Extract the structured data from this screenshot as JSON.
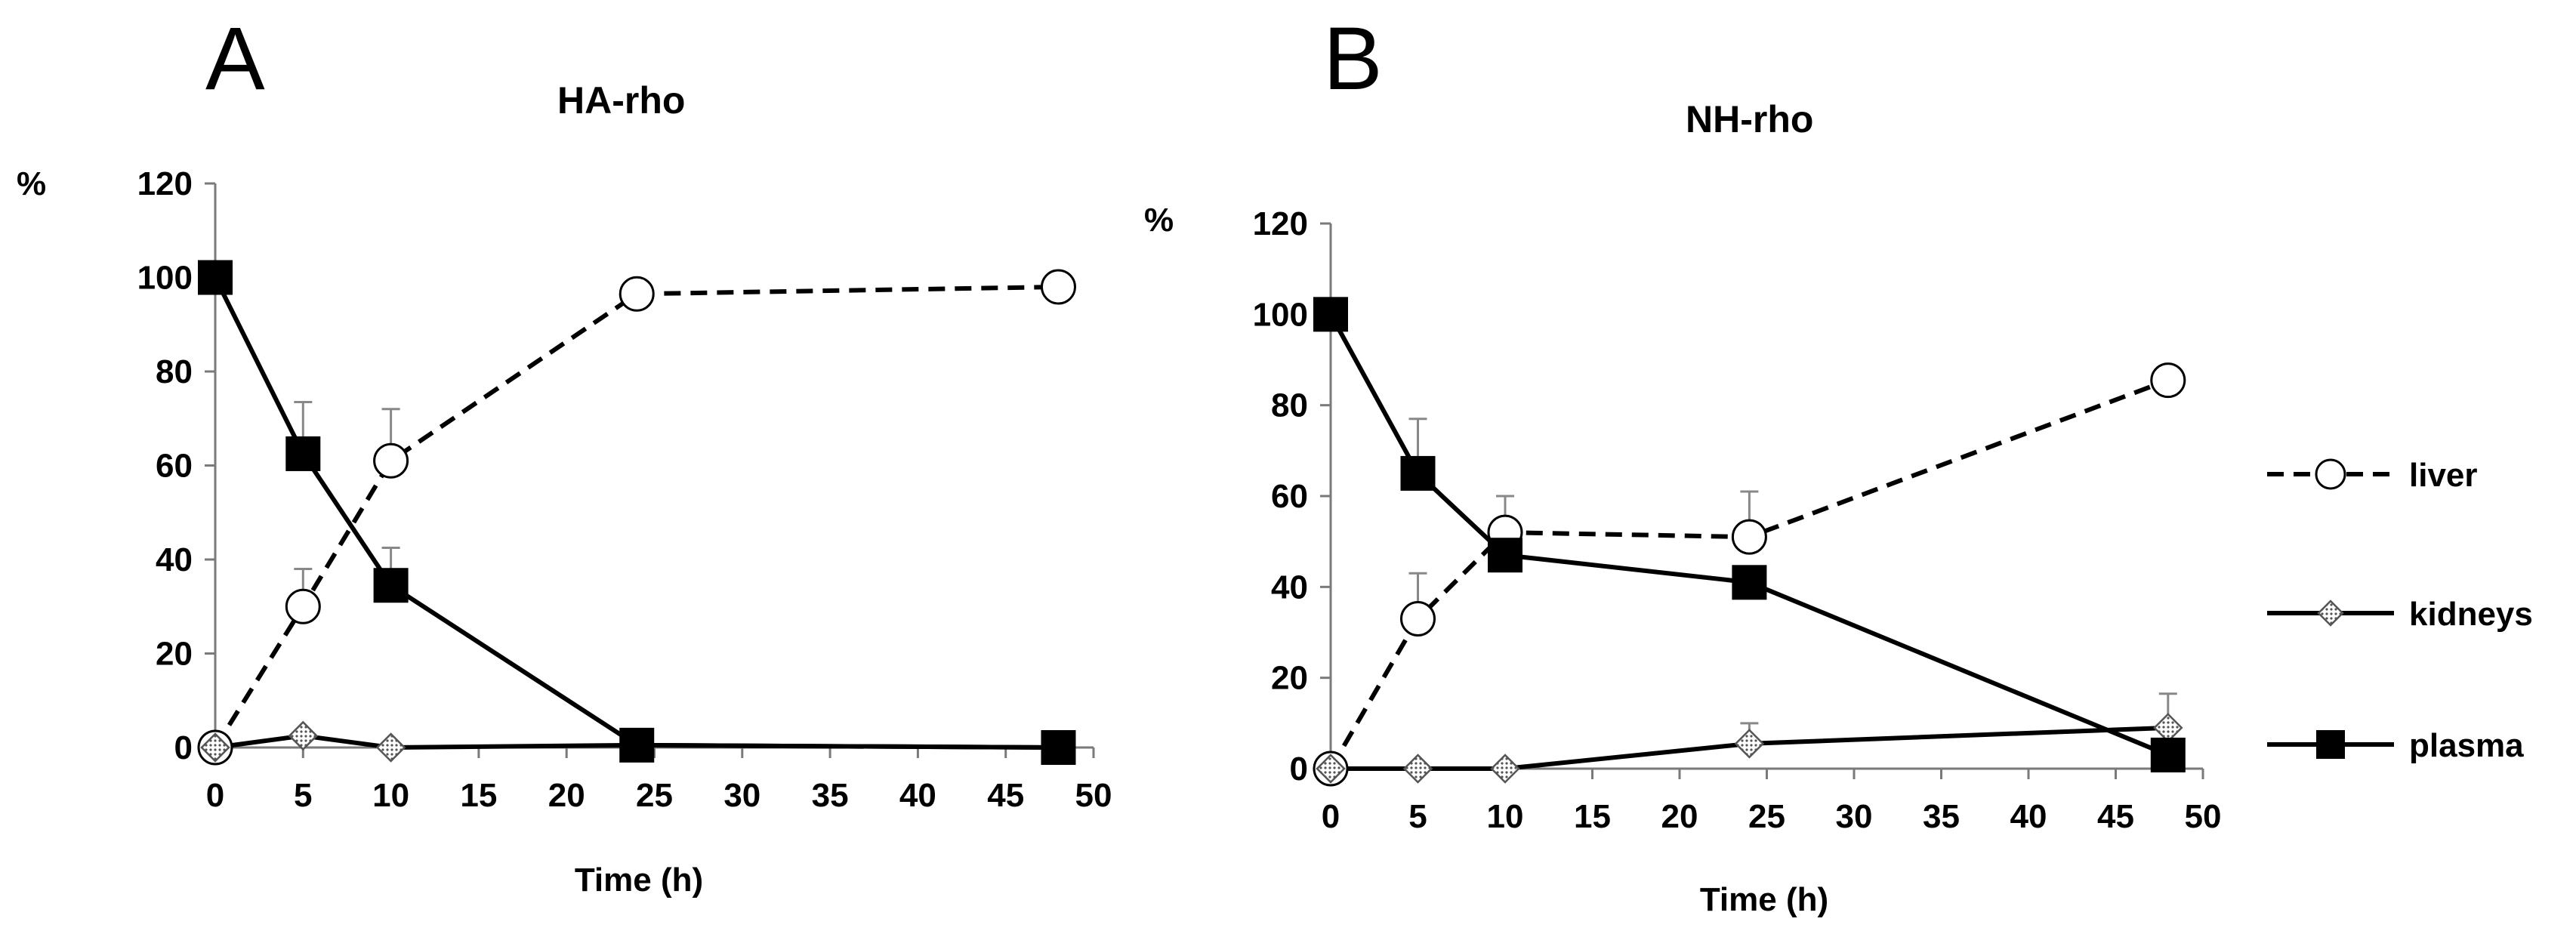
{
  "chart_data": [
    {
      "panel": "A",
      "type": "line",
      "title": "HA-rho",
      "xlabel": "Time (h)",
      "ylabel": "%",
      "xlim": [
        0,
        50
      ],
      "ylim": [
        0,
        120
      ],
      "xticks": [
        0,
        5,
        10,
        15,
        20,
        25,
        30,
        35,
        40,
        45,
        50
      ],
      "yticks": [
        0,
        20,
        40,
        60,
        80,
        100,
        120
      ],
      "series": [
        {
          "name": "liver",
          "marker": "circle",
          "line": "dashed",
          "x": [
            0,
            5,
            10,
            24,
            48
          ],
          "y": [
            0,
            30,
            61,
            96.5,
            98
          ],
          "err": [
            0,
            8,
            11,
            0,
            0
          ]
        },
        {
          "name": "kidneys",
          "marker": "diamond",
          "line": "solid",
          "x": [
            0,
            5,
            10,
            24,
            48
          ],
          "y": [
            0,
            2.5,
            0,
            0.5,
            0
          ],
          "err": [
            0,
            0,
            0,
            0,
            0
          ]
        },
        {
          "name": "plasma",
          "marker": "square",
          "line": "solid",
          "x": [
            0,
            5,
            10,
            24,
            48
          ],
          "y": [
            100,
            62.5,
            34.5,
            0.5,
            0
          ],
          "err": [
            0,
            11,
            8,
            0,
            0
          ]
        }
      ]
    },
    {
      "panel": "B",
      "type": "line",
      "title": "NH-rho",
      "xlabel": "Time (h)",
      "ylabel": "%",
      "xlim": [
        0,
        50
      ],
      "ylim": [
        0,
        120
      ],
      "xticks": [
        0,
        5,
        10,
        15,
        20,
        25,
        30,
        35,
        40,
        45,
        50
      ],
      "yticks": [
        0,
        20,
        40,
        60,
        80,
        100,
        120
      ],
      "series": [
        {
          "name": "liver",
          "marker": "circle",
          "line": "dashed",
          "x": [
            0,
            5,
            10,
            24,
            48
          ],
          "y": [
            0,
            33,
            52,
            51,
            85.5
          ],
          "err": [
            0,
            10,
            8,
            10,
            0
          ]
        },
        {
          "name": "kidneys",
          "marker": "diamond",
          "line": "solid",
          "x": [
            0,
            5,
            10,
            24,
            48
          ],
          "y": [
            0,
            0,
            0,
            5.5,
            9
          ],
          "err": [
            0,
            0,
            0,
            4.5,
            7.5
          ]
        },
        {
          "name": "plasma",
          "marker": "square",
          "line": "solid",
          "x": [
            0,
            5,
            10,
            24,
            48
          ],
          "y": [
            100,
            65,
            47,
            41,
            3
          ],
          "err": [
            0,
            12,
            13,
            0,
            0
          ]
        }
      ]
    }
  ],
  "legend": [
    {
      "name": "liver",
      "marker": "circle",
      "line": "dashed"
    },
    {
      "name": "kidneys",
      "marker": "diamond",
      "line": "solid"
    },
    {
      "name": "plasma",
      "marker": "square",
      "line": "solid"
    }
  ]
}
